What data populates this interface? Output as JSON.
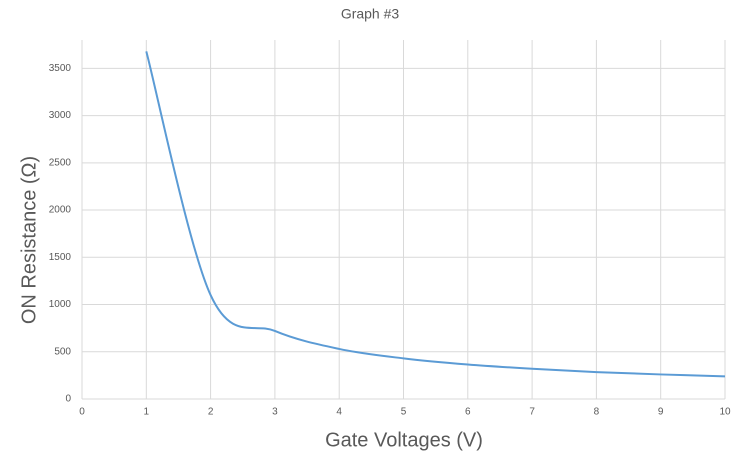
{
  "chart_data": {
    "type": "line",
    "title": "Graph #3",
    "x_label": "Gate Voltages (V)",
    "y_label": "ON Resistance (Ω)",
    "x": [
      1,
      2,
      3,
      4,
      5,
      6,
      7,
      8,
      9,
      10
    ],
    "series": [
      {
        "name": "ON Resistance",
        "color": "#5b9bd5",
        "values": [
          3680,
          1100,
          720,
          530,
          430,
          365,
          320,
          285,
          260,
          240
        ]
      }
    ],
    "xlim": [
      0,
      10
    ],
    "xticks": [
      0,
      1,
      2,
      3,
      4,
      5,
      6,
      7,
      8,
      9,
      10
    ],
    "ylim": [
      0,
      3800
    ],
    "yticks": [
      0,
      500,
      1000,
      1500,
      2000,
      2500,
      3000,
      3500
    ],
    "grid": true,
    "smooth": true
  }
}
